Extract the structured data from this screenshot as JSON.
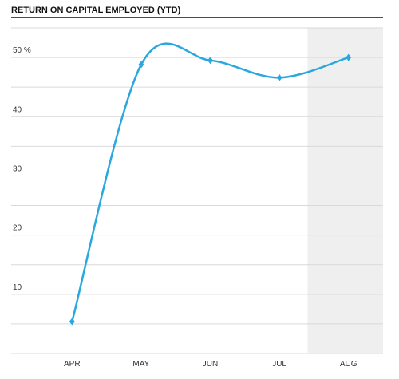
{
  "chart_data": {
    "type": "line",
    "title": "RETURN ON CAPITAL EMPLOYED (YTD)",
    "categories": [
      "APR",
      "MAY",
      "JUN",
      "JUL",
      "AUG"
    ],
    "series": [
      {
        "name": "Return on capital employed",
        "color": "#29a8e0",
        "values": [
          5.4,
          48.8,
          49.5,
          46.6,
          50.0
        ]
      }
    ],
    "ylim": [
      0,
      55
    ],
    "yticks": [
      10,
      20,
      30,
      40,
      {
        "value": 50,
        "label": "50 %"
      }
    ],
    "ygrid": [
      0,
      5,
      10,
      15,
      20,
      25,
      30,
      35,
      40,
      45,
      50,
      55
    ],
    "grid": true,
    "smooth": true,
    "highlight": "AUG"
  }
}
